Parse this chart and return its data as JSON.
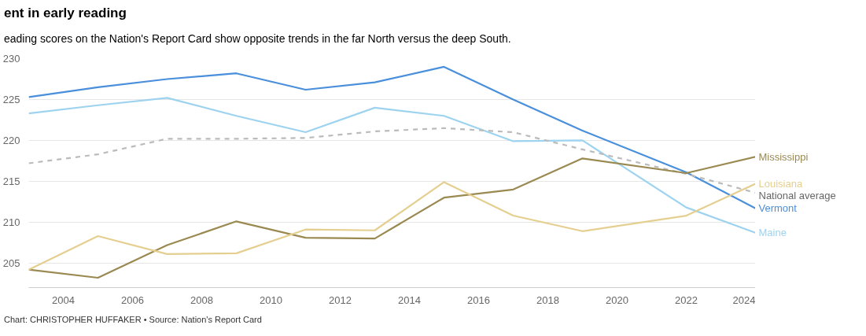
{
  "chart_data": {
    "type": "line",
    "title": "ent in early reading",
    "subtitle": "eading scores on the Nation's Report Card show opposite trends in the far North versus the deep South.",
    "x": [
      2003,
      2005,
      2007,
      2009,
      2011,
      2013,
      2015,
      2017,
      2019,
      2022,
      2024
    ],
    "series": [
      {
        "name": "Vermont",
        "color": "#4a8fdc",
        "values": [
          225.3,
          226.5,
          227.5,
          228.2,
          226.2,
          227.1,
          229,
          225,
          221.2,
          216.1,
          211.7
        ]
      },
      {
        "name": "Maine",
        "color": "#9dd3ef",
        "values": [
          223.3,
          224.3,
          225.2,
          223,
          221,
          224,
          223,
          219.9,
          220,
          211.8,
          208.7
        ]
      },
      {
        "name": "National average",
        "color": "#bbbbbb",
        "line_style": "dashed",
        "values": [
          217.2,
          218.3,
          220.2,
          220.2,
          220.3,
          221.1,
          221.5,
          221,
          218.9,
          215.9,
          213.6
        ]
      },
      {
        "name": "Mississippi",
        "color": "#9a8a52",
        "values": [
          204.2,
          203.2,
          207.2,
          210.1,
          208.1,
          208,
          213,
          214,
          217.8,
          216,
          218
        ]
      },
      {
        "name": "Louisiana",
        "color": "#e5cf90",
        "values": [
          204.2,
          208.3,
          206.1,
          206.2,
          209.1,
          209,
          214.9,
          210.8,
          208.9,
          210.8,
          214.7
        ]
      }
    ],
    "xlim": [
      2003,
      2024
    ],
    "xticks": [
      2004,
      2006,
      2008,
      2010,
      2012,
      2014,
      2016,
      2018,
      2020,
      2022,
      2024
    ],
    "ylim": [
      202,
      230
    ],
    "yticks": [
      205,
      210,
      215,
      220,
      225,
      230
    ],
    "grid": "y",
    "line_style": "solid",
    "marker": "none",
    "annotations": [
      "Chart: CHRISTOPHER HUFFAKER • Source: Nation's Report Card"
    ]
  }
}
